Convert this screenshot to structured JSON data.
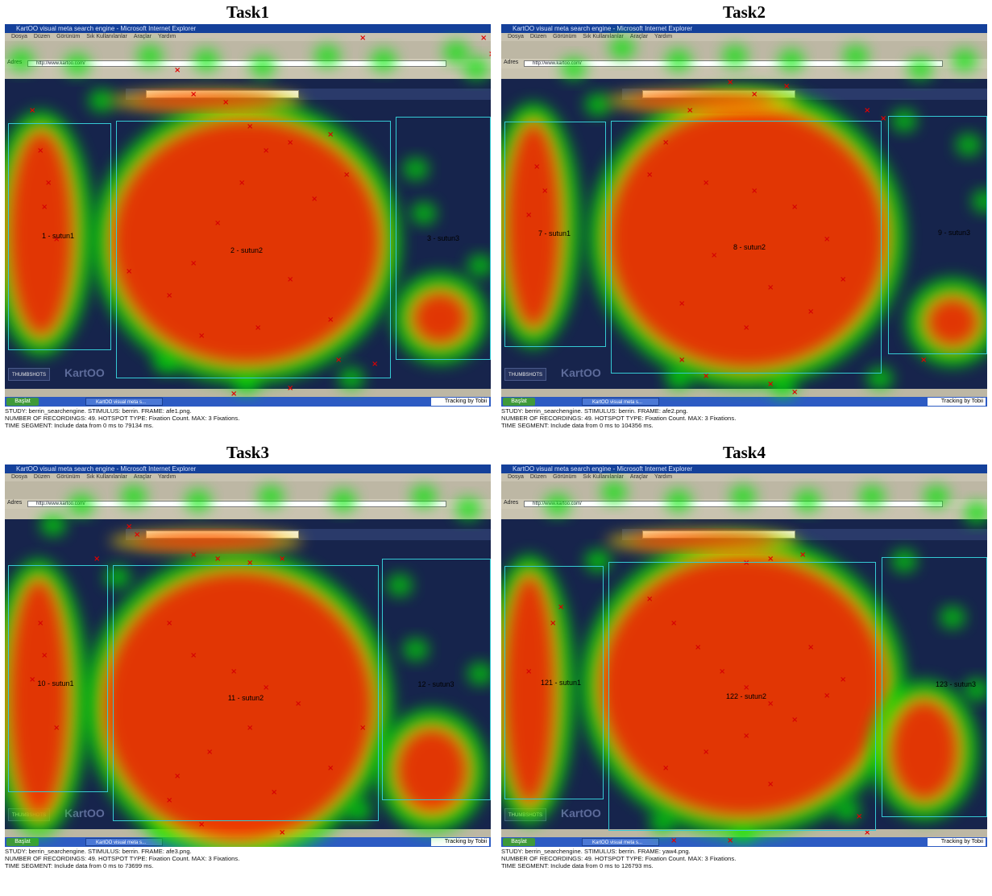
{
  "panels": [
    {
      "title": "Task1",
      "aoi_labels": [
        "1 - sutun1",
        "2 - sutun2",
        "3 - sutun3"
      ],
      "meta": {
        "line1": "STUDY: berrin_searchengine.   STIMULUS: berrin.   FRAME: afe1.png.",
        "line2": "NUMBER OF RECORDINGS: 49.   HOTSPOT TYPE: Fixation Count.   MAX: 3 Fixations.",
        "line3": "TIME SEGMENT: Include data from 0 ms to 79134 ms."
      }
    },
    {
      "title": "Task2",
      "aoi_labels": [
        "7 - sutun1",
        "8 - sutun2",
        "9 - sutun3"
      ],
      "meta": {
        "line1": "STUDY: berrin_searchengine.   STIMULUS: berrin.   FRAME: afe2.png.",
        "line2": "NUMBER OF RECORDINGS: 49.   HOTSPOT TYPE: Fixation Count.   MAX: 3 Fixations.",
        "line3": "TIME SEGMENT: Include data from 0 ms to 104356 ms."
      }
    },
    {
      "title": "Task3",
      "aoi_labels": [
        "10 - sutun1",
        "11 - sutun2",
        "12 - sutun3"
      ],
      "meta": {
        "line1": "STUDY: berrin_searchengine.   STIMULUS: berrin.   FRAME: afe3.png.",
        "line2": "NUMBER OF RECORDINGS: 49.   HOTSPOT TYPE: Fixation Count.   MAX: 3 Fixations.",
        "line3": "TIME SEGMENT: Include data from 0 ms to 73699 ms."
      }
    },
    {
      "title": "Task4",
      "aoi_labels": [
        "121 - sutun1",
        "122 - sutun2",
        "123 - sutun3"
      ],
      "meta": {
        "line1": "STUDY: berrin_searchengine.   STIMULUS: berrin.   FRAME: yaw4.png.",
        "line2": "NUMBER OF RECORDINGS: 49.   HOTSPOT TYPE: Fixation Count.   MAX: 3 Fixations.",
        "line3": "TIME SEGMENT: Include data from 0 ms to 126793 ms."
      }
    }
  ],
  "browser": {
    "window_title": "KartOO visual meta search engine - Microsoft Internet Explorer",
    "menu": [
      "Dosya",
      "Düzen",
      "Görünüm",
      "Sık Kullanılanlar",
      "Araçlar",
      "Yardım"
    ],
    "address_label": "Adres",
    "address_value": "http://www.kartoo.com/",
    "start_label": "Başlat",
    "taskbar_item": "KartOO visual meta s...",
    "tracking_label": "Tracking by Tobii",
    "logo": "KartOO",
    "thumb_badge": "THUMBSHOTS"
  },
  "colors": {
    "heat_hot": "#ff0000",
    "heat_warm": "#ffd200",
    "heat_cool": "#00e600",
    "aoi_border": "#35c9d4",
    "fixation_marker": "#e00000"
  }
}
